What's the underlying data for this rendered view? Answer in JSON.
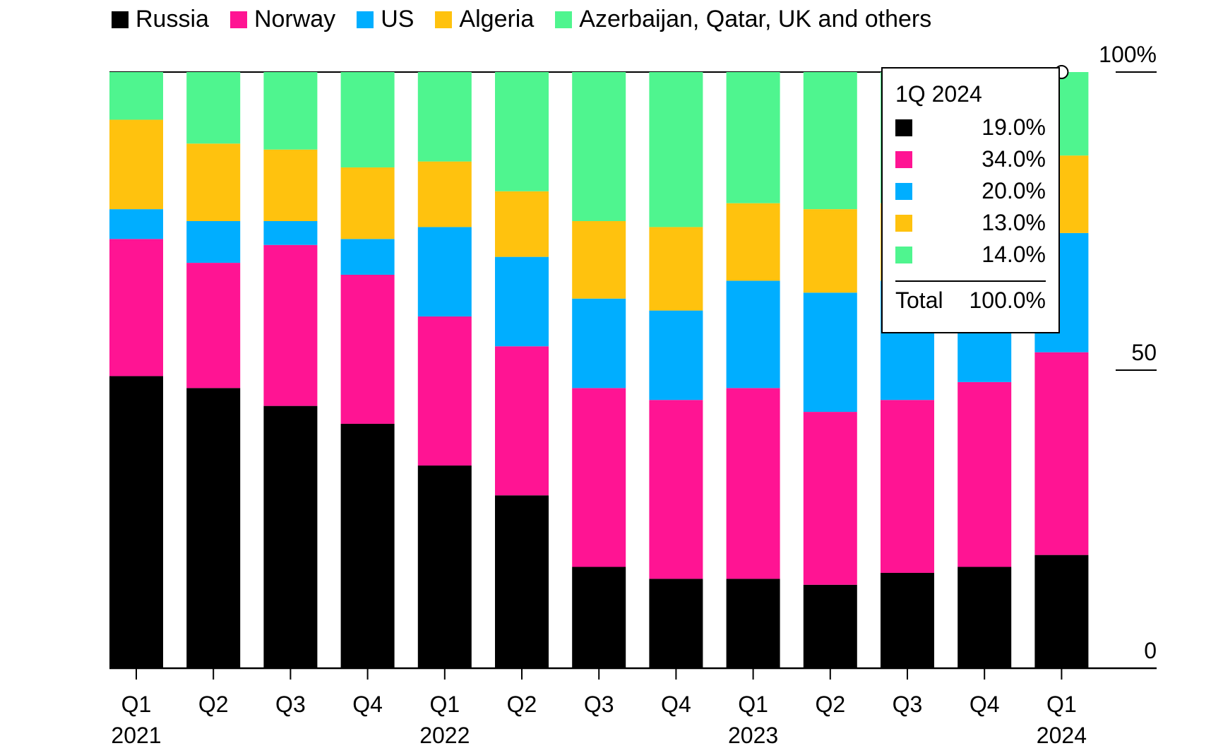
{
  "chart_data": {
    "type": "bar",
    "stacked": true,
    "categories": [
      "Q1 2021",
      "Q2 2021",
      "Q3 2021",
      "Q4 2021",
      "Q1 2022",
      "Q2 2022",
      "Q3 2022",
      "Q4 2022",
      "Q1 2023",
      "Q2 2023",
      "Q3 2023",
      "Q4 2023",
      "Q1 2024"
    ],
    "tick_labels": [
      {
        "q": "Q1",
        "year": "2021"
      },
      {
        "q": "Q2",
        "year": ""
      },
      {
        "q": "Q3",
        "year": ""
      },
      {
        "q": "Q4",
        "year": ""
      },
      {
        "q": "Q1",
        "year": "2022"
      },
      {
        "q": "Q2",
        "year": ""
      },
      {
        "q": "Q3",
        "year": ""
      },
      {
        "q": "Q4",
        "year": ""
      },
      {
        "q": "Q1",
        "year": "2023"
      },
      {
        "q": "Q2",
        "year": ""
      },
      {
        "q": "Q3",
        "year": ""
      },
      {
        "q": "Q4",
        "year": ""
      },
      {
        "q": "Q1",
        "year": "2024"
      }
    ],
    "series": [
      {
        "name": "Russia",
        "color": "#000000",
        "values": [
          49,
          47,
          44,
          41,
          34,
          29,
          17,
          15,
          15,
          14,
          16,
          17,
          19
        ]
      },
      {
        "name": "Norway",
        "color": "#ff1493",
        "values": [
          23,
          21,
          27,
          25,
          25,
          25,
          30,
          30,
          32,
          29,
          29,
          31,
          34
        ]
      },
      {
        "name": "US",
        "color": "#00aeff",
        "values": [
          5,
          7,
          4,
          6,
          15,
          15,
          15,
          15,
          18,
          20,
          20,
          18,
          20
        ]
      },
      {
        "name": "Algeria",
        "color": "#ffc20e",
        "values": [
          15,
          13,
          12,
          12,
          11,
          11,
          13,
          14,
          13,
          14,
          13,
          12,
          13
        ]
      },
      {
        "name": "Azerbaijan, Qatar, UK and others",
        "color": "#4ff58f",
        "values": [
          8,
          12,
          13,
          16,
          15,
          20,
          25,
          26,
          22,
          23,
          22,
          22,
          14
        ]
      }
    ],
    "ylim": [
      0,
      100
    ],
    "y_ticks": [
      {
        "value": 0,
        "label": "0"
      },
      {
        "value": 50,
        "label": "50"
      },
      {
        "value": 100,
        "label": "100%"
      }
    ],
    "y_axis_side": "right",
    "legend_placement": "top-left",
    "grid": false
  },
  "tooltip": {
    "title": "1Q 2024",
    "rows": [
      "19.0%",
      "34.0%",
      "20.0%",
      "13.0%",
      "14.0%"
    ],
    "total_label": "Total",
    "total_value": "100.0%"
  }
}
